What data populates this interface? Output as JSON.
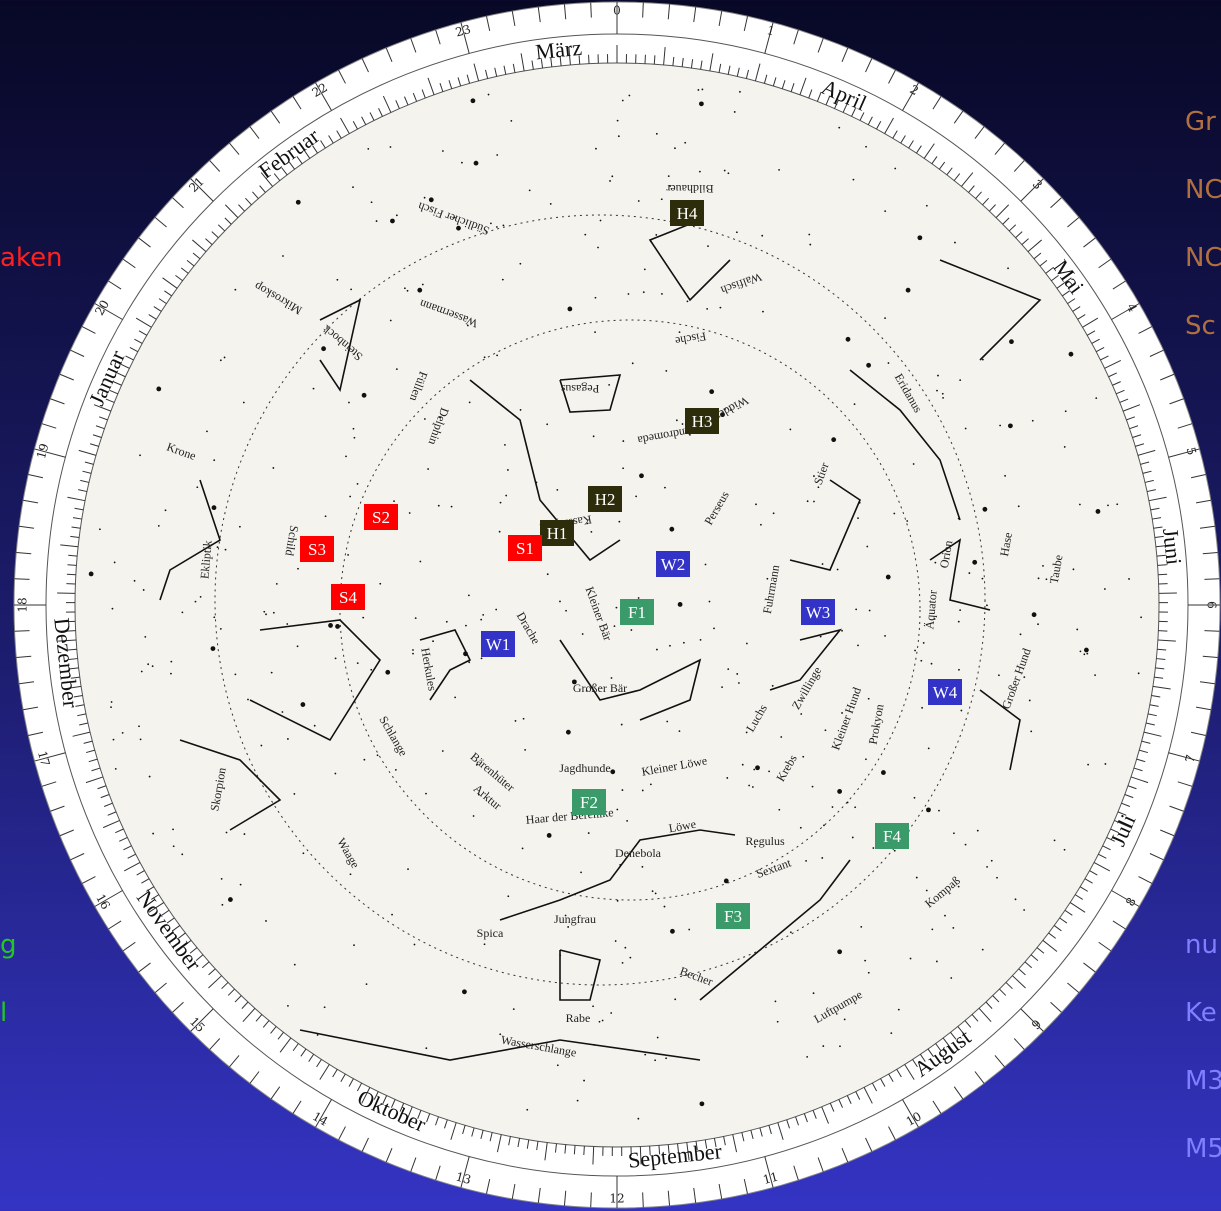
{
  "side_left": [
    {
      "text": "aken",
      "color": "#ff2020"
    },
    {
      "text": "g",
      "color": "#22c822"
    },
    {
      "text": "l",
      "color": "#22c822"
    }
  ],
  "side_right": [
    {
      "text": "Gr",
      "color": "#b07040"
    },
    {
      "text": "NC",
      "color": "#b07040"
    },
    {
      "text": "NC",
      "color": "#b07040"
    },
    {
      "text": "Sc",
      "color": "#b07040"
    },
    {
      "text": "nu",
      "color": "#7f7fff"
    },
    {
      "text": "Ke",
      "color": "#7f7fff"
    },
    {
      "text": "M3",
      "color": "#7f7fff"
    },
    {
      "text": "M5",
      "color": "#7f7fff"
    }
  ],
  "months": [
    "März",
    "April",
    "Mai",
    "Juni",
    "Juli",
    "August",
    "September",
    "Oktober",
    "November",
    "Dezember",
    "Januar",
    "Februar"
  ],
  "hours": [
    0,
    1,
    2,
    3,
    4,
    5,
    6,
    7,
    8,
    9,
    10,
    11,
    12,
    13,
    14,
    15,
    16,
    17,
    18,
    19,
    20,
    21,
    22,
    23
  ],
  "markers": [
    {
      "label": "H1",
      "color": "#2d2d0c"
    },
    {
      "label": "H2",
      "color": "#2d2d0c"
    },
    {
      "label": "H3",
      "color": "#2d2d0c"
    },
    {
      "label": "H4",
      "color": "#2d2d0c"
    },
    {
      "label": "S1",
      "color": "#ff0000"
    },
    {
      "label": "S2",
      "color": "#ff0000"
    },
    {
      "label": "S3",
      "color": "#ff0000"
    },
    {
      "label": "S4",
      "color": "#ff0000"
    },
    {
      "label": "W1",
      "color": "#3333c8"
    },
    {
      "label": "W2",
      "color": "#3333c8"
    },
    {
      "label": "W3",
      "color": "#3333c8"
    },
    {
      "label": "W4",
      "color": "#3333c8"
    },
    {
      "label": "F1",
      "color": "#3a9a6a"
    },
    {
      "label": "F2",
      "color": "#3a9a6a"
    },
    {
      "label": "F3",
      "color": "#3a9a6a"
    },
    {
      "label": "F4",
      "color": "#3a9a6a"
    }
  ],
  "constellations": [
    "Großer Bär",
    "Kleiner Bär",
    "Drache",
    "Herkules",
    "Jagdhunde",
    "Kleiner Löwe",
    "Haar der Berenike",
    "Löwe",
    "Jungfrau",
    "Rabe",
    "Becher",
    "Wasserschlange",
    "Sextant",
    "Luftpumpe",
    "Kompaß",
    "Großer Hund",
    "Taube",
    "Hase",
    "Orion",
    "Eridanus",
    "Walfisch",
    "Bildhauer",
    "Fische",
    "Pegasus",
    "Widder",
    "Andromeda",
    "Kassiopeia",
    "Wassermann",
    "Steinbock",
    "Mikroskop",
    "Südlicher Fisch",
    "Krone",
    "Skorpion",
    "Waage",
    "Schlange",
    "Spica",
    "Denebola",
    "Regulus",
    "Prokyon",
    "Kleiner Hund",
    "Krebs",
    "Luchs",
    "Zwillinge",
    "Fuhrmann",
    "Stier",
    "Perseus",
    "Delphin",
    "Füllen",
    "Schild",
    "Bärenhüter",
    "Arktur",
    "Ekliptik",
    "Äquator"
  ]
}
